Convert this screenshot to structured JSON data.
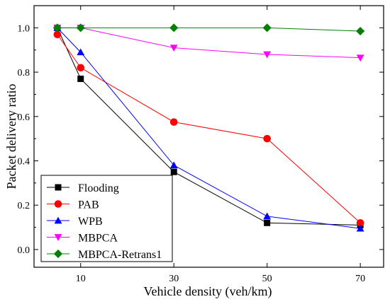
{
  "chart_data": {
    "type": "line",
    "title": "",
    "xlabel": "Vehicle density (veh/km)",
    "ylabel": "Packet delivery ratio",
    "x": [
      5,
      10,
      30,
      50,
      70
    ],
    "xlim": [
      0,
      75
    ],
    "ylim": [
      -0.08,
      1.1
    ],
    "xticks": [
      10,
      30,
      50,
      70
    ],
    "yticks": [
      0.0,
      0.2,
      0.4,
      0.6,
      0.8,
      1.0
    ],
    "ytick_labels": [
      "0.0",
      "0.2",
      "0.4",
      "0.6",
      "0.8",
      "1.0"
    ],
    "grid": false,
    "legend_position": "bottom-left",
    "series": [
      {
        "name": "Flooding",
        "color": "#000000",
        "marker": "square",
        "values": [
          1.0,
          0.77,
          0.35,
          0.12,
          0.11
        ]
      },
      {
        "name": "PAB",
        "color": "#ff0000",
        "marker": "circle",
        "values": [
          0.97,
          0.82,
          0.575,
          0.5,
          0.12
        ]
      },
      {
        "name": "WPB",
        "color": "#0000ff",
        "marker": "triangle-up",
        "values": [
          1.0,
          0.89,
          0.38,
          0.15,
          0.095
        ]
      },
      {
        "name": "MBPCA",
        "color": "#ff00ff",
        "marker": "triangle-down",
        "values": [
          1.0,
          1.0,
          0.91,
          0.88,
          0.865
        ]
      },
      {
        "name": "MBPCA-Retrans1",
        "color": "#008000",
        "marker": "diamond",
        "values": [
          1.0,
          1.0,
          1.0,
          1.0,
          0.985
        ]
      }
    ]
  }
}
